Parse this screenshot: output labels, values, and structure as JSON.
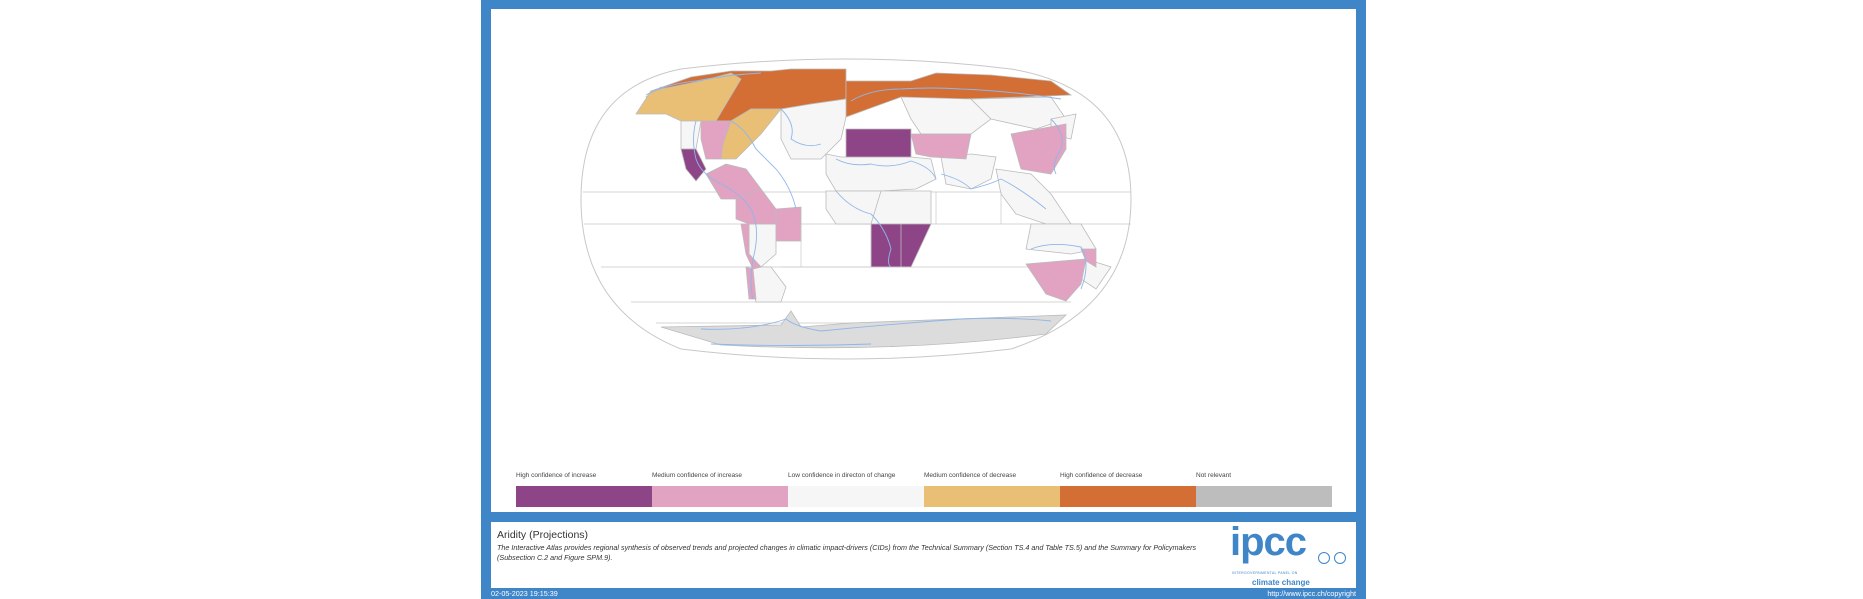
{
  "legend": [
    {
      "label": "High confidence of increase",
      "color": "#8e4587"
    },
    {
      "label": "Medium confidence of increase",
      "color": "#e2a2c2"
    },
    {
      "label": "Low confidence in directon of change",
      "color": "#f6f6f6"
    },
    {
      "label": "Medium confidence of decrease",
      "color": "#e9bf76"
    },
    {
      "label": "High confidence of decrease",
      "color": "#d36f35"
    },
    {
      "label": "Not relevant",
      "color": "#bdbdbd"
    }
  ],
  "info": {
    "title": "Aridity (Projections)",
    "description": "The Interactive Atlas provides regional synthesis of observed trends and projected changes in climatic impact-drivers (CIDs) from the Technical Summary (Section TS.4 and Table TS.5) and the Summary for Policymakers (Subsection C.2 and Figure SPM.9).",
    "logo_text": "ipcc",
    "logo_subtitle_small": "INTERGOVERNMENTAL PANEL ON",
    "logo_subtitle": "climate change"
  },
  "footer": {
    "timestamp": "02-05-2023 19:15:39",
    "copyright": "http://www.ipcc.ch/copyright"
  },
  "colors": {
    "frame": "#3f86c9",
    "coastline": "#8fb6ea",
    "region_border": "#bbbbbb"
  }
}
